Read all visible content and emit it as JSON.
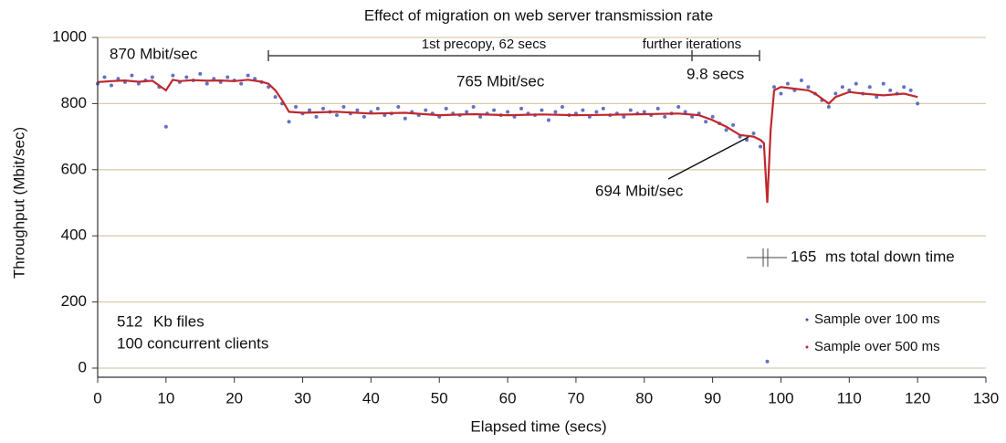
{
  "chart_data": {
    "type": "scatter-line",
    "title": "Effect of migration on web server transmission rate",
    "xlabel": "Elapsed time (secs)",
    "ylabel": "Throughput (Mbit/sec)",
    "xlim": [
      0,
      130
    ],
    "xticks": [
      0,
      10,
      20,
      30,
      40,
      50,
      60,
      70,
      80,
      90,
      100,
      110,
      120,
      130
    ],
    "ylim": [
      0,
      1000
    ],
    "yticks": [
      0,
      200,
      400,
      600,
      800,
      1000
    ],
    "grid": true,
    "legend": "lower right",
    "annotations": [
      "870 Mbit/sec",
      "1st precopy, 62 secs",
      "further iterations",
      "765 Mbit/sec",
      "9.8 secs",
      "694 Mbit/sec",
      "165",
      "ms total down time",
      "512",
      "Kb files",
      "100 concurrent clients"
    ],
    "series": [
      {
        "name": "Sample over 100 ms",
        "color": "#3a4fb3",
        "style": "dots",
        "x": [
          0,
          1,
          2,
          3,
          4,
          5,
          6,
          7,
          8,
          9,
          10,
          11,
          12,
          13,
          14,
          15,
          16,
          17,
          18,
          19,
          20,
          21,
          22,
          23,
          24,
          25,
          26,
          27,
          28,
          29,
          30,
          31,
          32,
          33,
          34,
          35,
          36,
          37,
          38,
          39,
          40,
          41,
          42,
          43,
          44,
          45,
          46,
          47,
          48,
          49,
          50,
          51,
          52,
          53,
          54,
          55,
          56,
          57,
          58,
          59,
          60,
          61,
          62,
          63,
          64,
          65,
          66,
          67,
          68,
          69,
          70,
          71,
          72,
          73,
          74,
          75,
          76,
          77,
          78,
          79,
          80,
          81,
          82,
          83,
          84,
          85,
          86,
          87,
          88,
          89,
          90,
          91,
          92,
          93,
          94,
          95,
          96,
          97,
          98,
          99,
          100,
          101,
          102,
          103,
          104,
          105,
          106,
          107,
          108,
          109,
          110,
          111,
          112,
          113,
          114,
          115,
          116,
          117,
          118,
          119,
          120
        ],
        "values": [
          860,
          880,
          855,
          875,
          865,
          885,
          860,
          870,
          880,
          850,
          730,
          885,
          865,
          880,
          870,
          890,
          860,
          875,
          865,
          880,
          870,
          860,
          885,
          875,
          865,
          850,
          820,
          800,
          745,
          790,
          770,
          780,
          760,
          785,
          775,
          765,
          790,
          770,
          780,
          760,
          775,
          785,
          765,
          770,
          790,
          755,
          775,
          765,
          780,
          770,
          760,
          785,
          770,
          765,
          775,
          790,
          760,
          770,
          780,
          765,
          775,
          760,
          785,
          770,
          765,
          780,
          750,
          775,
          790,
          765,
          770,
          780,
          760,
          775,
          785,
          765,
          770,
          760,
          780,
          770,
          775,
          765,
          785,
          760,
          770,
          790,
          775,
          760,
          770,
          745,
          760,
          740,
          720,
          735,
          700,
          690,
          710,
          670,
          20,
          850,
          830,
          860,
          840,
          870,
          850,
          830,
          810,
          790,
          830,
          850,
          840,
          860,
          830,
          850,
          820,
          860,
          840,
          830,
          850,
          840,
          800
        ]
      },
      {
        "name": "Sample over 500 ms",
        "color": "#c0282d",
        "style": "line",
        "x": [
          0,
          2,
          4,
          6,
          8,
          10,
          11,
          12,
          14,
          16,
          18,
          20,
          22,
          24,
          25,
          26,
          27,
          28,
          30,
          35,
          40,
          45,
          50,
          55,
          60,
          65,
          70,
          75,
          80,
          85,
          88,
          90,
          92,
          94,
          96,
          97,
          97.5,
          98,
          98.5,
          99,
          100,
          102,
          104,
          105,
          107,
          108,
          110,
          112,
          115,
          118,
          120
        ],
        "values": [
          865,
          868,
          870,
          866,
          869,
          840,
          872,
          868,
          871,
          869,
          870,
          868,
          872,
          866,
          860,
          840,
          810,
          775,
          772,
          775,
          770,
          772,
          765,
          768,
          765,
          767,
          765,
          766,
          768,
          770,
          765,
          750,
          730,
          705,
          700,
          690,
          680,
          500,
          720,
          840,
          850,
          845,
          840,
          830,
          800,
          820,
          835,
          830,
          825,
          830,
          820
        ]
      }
    ]
  }
}
